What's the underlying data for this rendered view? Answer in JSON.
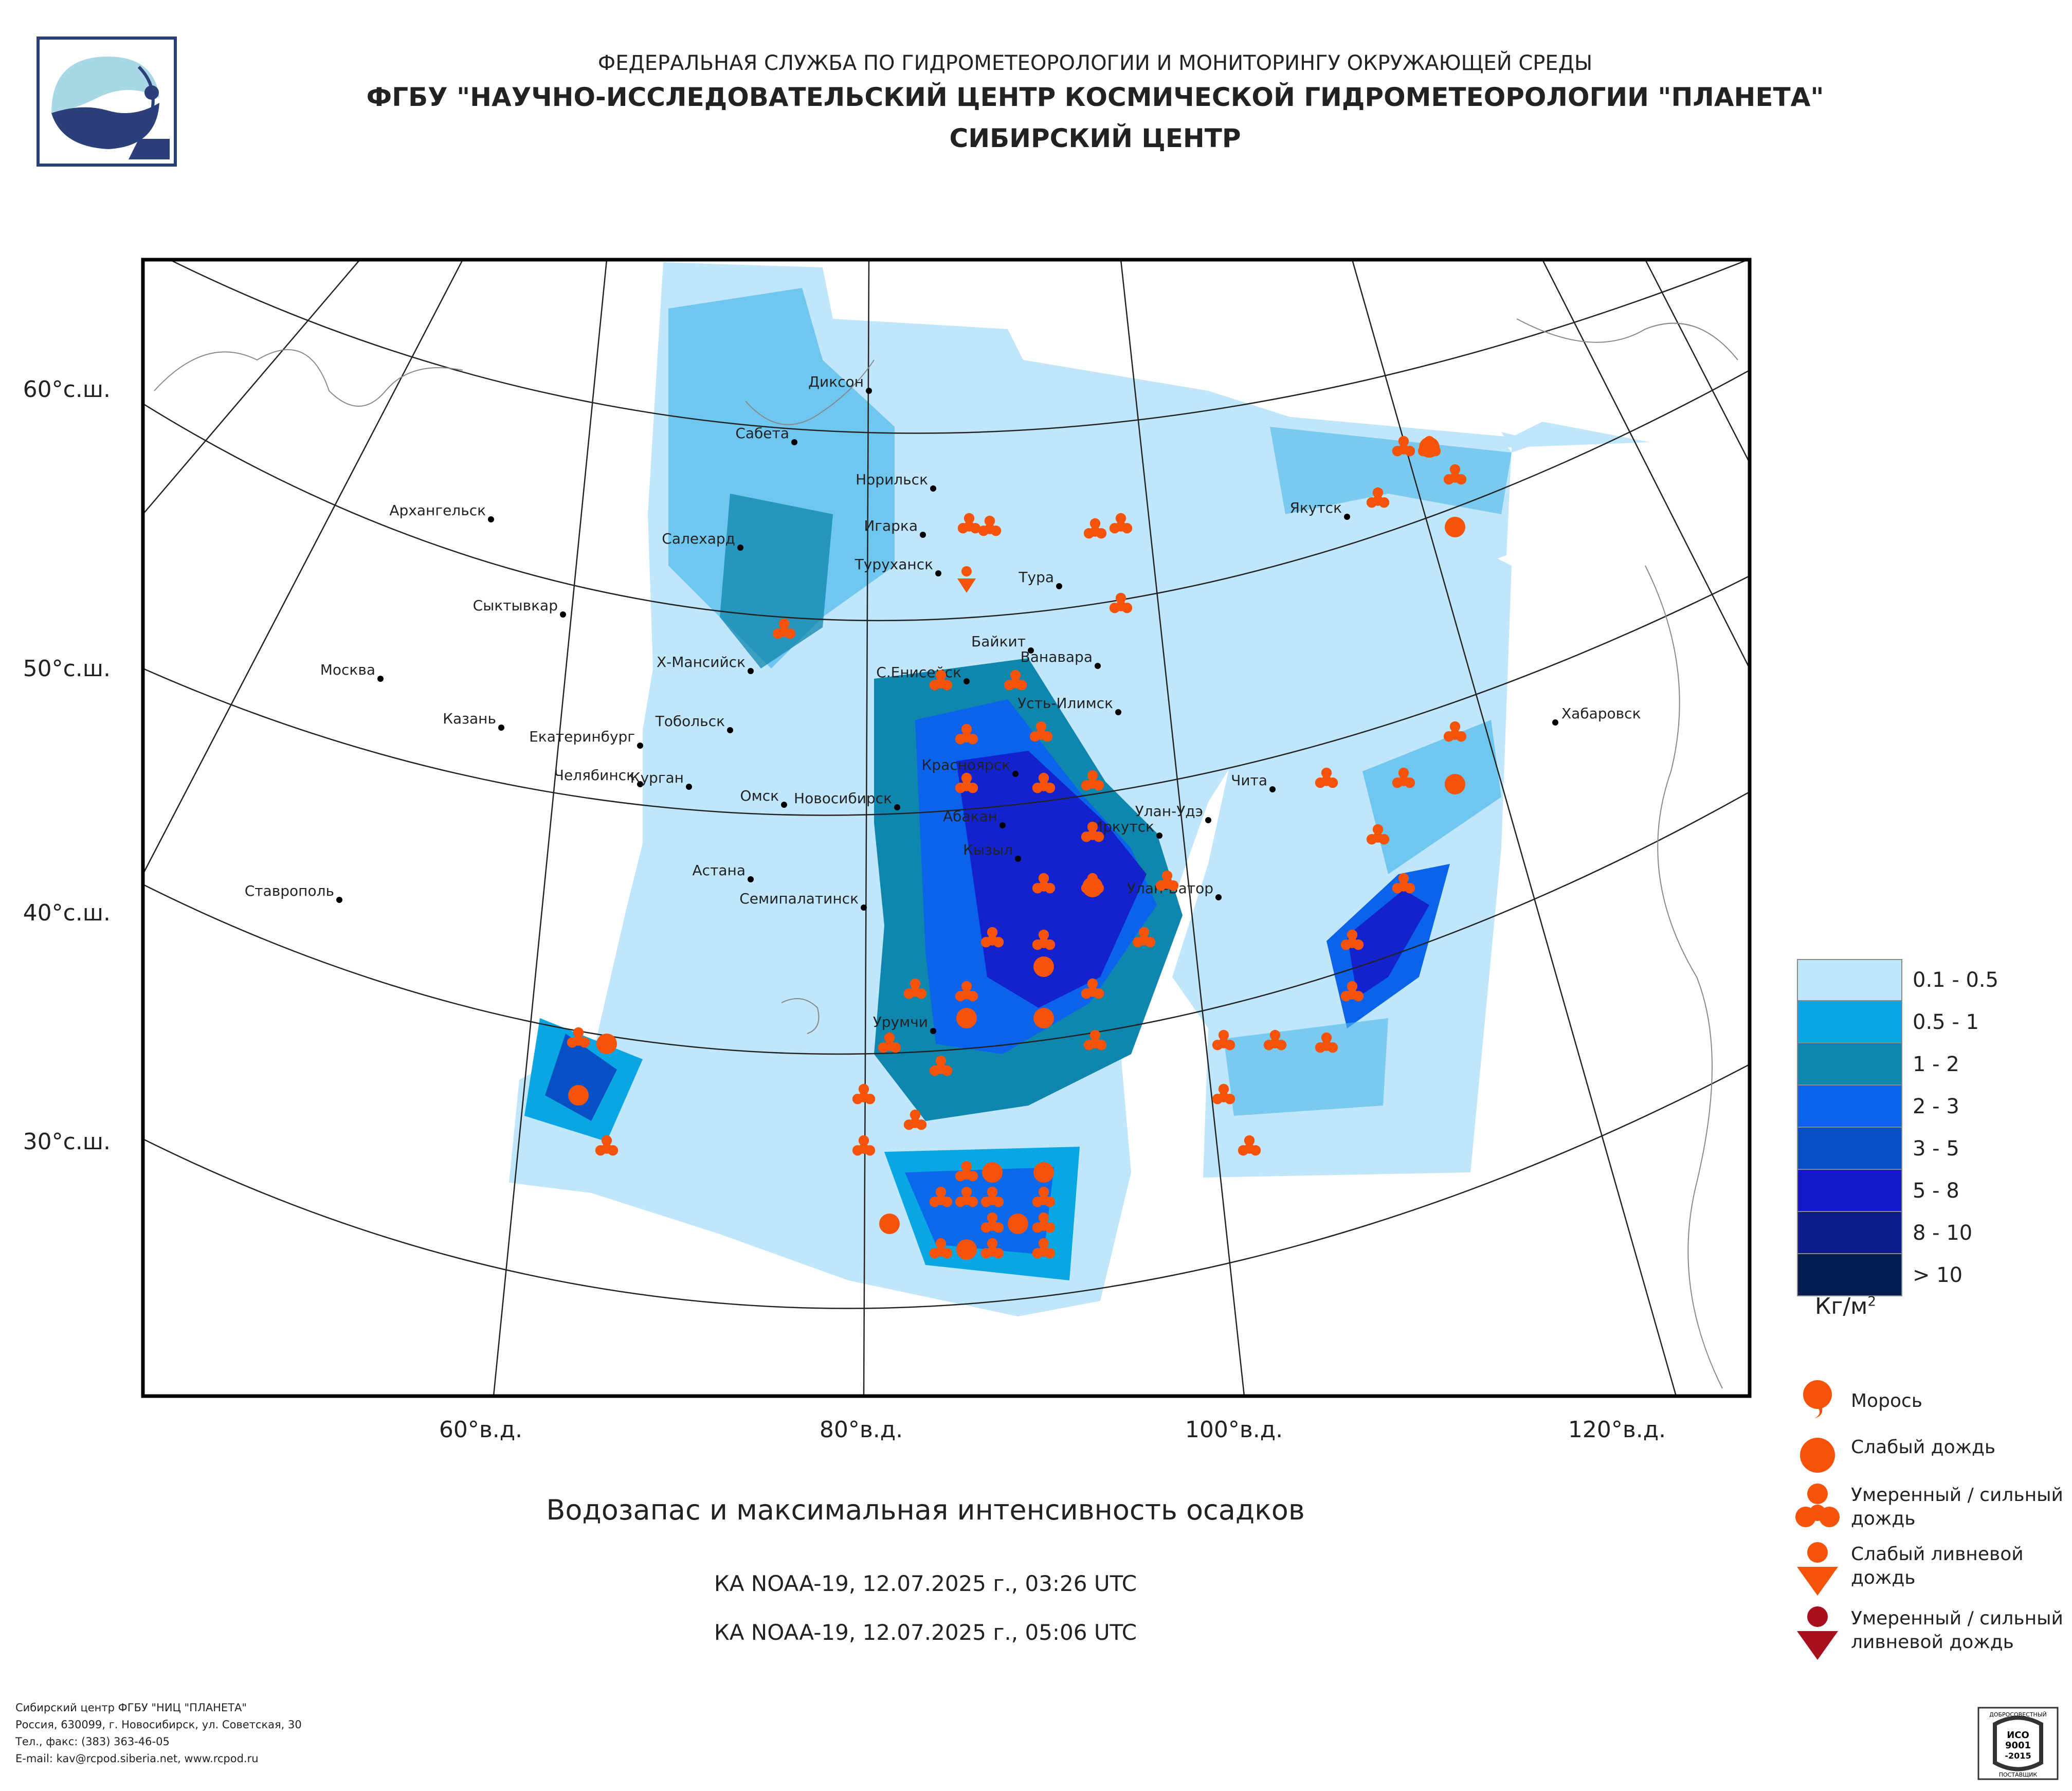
{
  "header": {
    "line1": "ФЕДЕРАЛЬНАЯ СЛУЖБА ПО ГИДРОМЕТЕОРОЛОГИИ И МОНИТОРИНГУ ОКРУЖАЮЩЕЙ СРЕДЫ",
    "line2": "ФГБУ \"НАУЧНО-ИССЛЕДОВАТЕЛЬСКИЙ ЦЕНТР КОСМИЧЕСКОЙ ГИДРОМЕТЕОРОЛОГИИ \"ПЛАНЕТА\"",
    "line3": "СИБИРСКИЙ ЦЕНТР"
  },
  "axes": {
    "lat_labels": [
      "60°с.ш.",
      "50°с.ш.",
      "40°с.ш.",
      "30°с.ш."
    ],
    "lon_labels": [
      "60°в.д.",
      "80°в.д.",
      "100°в.д.",
      "120°в.д."
    ]
  },
  "cities": [
    "Диксон",
    "Сабета",
    "Норильск",
    "Игарка",
    "Туруханск",
    "Тура",
    "Салехард",
    "Архангельск",
    "Якутск",
    "Сыктывкар",
    "Москва",
    "Х-Мансийск",
    "С.Енисейск",
    "Байкит",
    "Ванавара",
    "Усть-Илимск",
    "Казань",
    "Екатеринбург",
    "Тобольск",
    "Хабаровск",
    "Челябинск",
    "Курган",
    "Омск",
    "Новосибирск",
    "Красноярск",
    "Абакан",
    "Чита",
    "Улан-Удэ",
    "Иркутск",
    "Кызыл",
    "Астана",
    "Улан-Батор",
    "Семипалатинск",
    "Ставрополь",
    "Урумчи"
  ],
  "title": "Водозапас и максимальная интенсивность осадков",
  "passes": [
    "КА NOAA-19, 12.07.2025 г., 03:26 UTC",
    "КА NOAA-19, 12.07.2025 г., 05:06 UTC"
  ],
  "legend": {
    "items": [
      {
        "label": "0.1 - 0.5",
        "color": "#bfe6fa"
      },
      {
        "label": "0.5 - 1",
        "color": "#08a6e3"
      },
      {
        "label": "1 - 2",
        "color": "#0e86ad"
      },
      {
        "label": "2 - 3",
        "color": "#0a63ea"
      },
      {
        "label": "3 - 5",
        "color": "#0650c4"
      },
      {
        "label": "5 - 8",
        "color": "#1418c8"
      },
      {
        "label": "8 - 10",
        "color": "#0c1c8a"
      },
      {
        "label": "> 10",
        "color": "#041d52"
      }
    ],
    "unit": "Кг/м",
    "unit_sup": "2"
  },
  "symbols": [
    {
      "icon": "drizzle-icon",
      "label": "Морось",
      "color": "#f5520a"
    },
    {
      "icon": "light-rain-icon",
      "label": "Слабый дождь",
      "color": "#f5520a"
    },
    {
      "icon": "moderate-rain-icon",
      "label": "Умеренный / сильный\nдождь",
      "color": "#f5520a"
    },
    {
      "icon": "light-shower-icon",
      "label": "Слабый ливневой\nдождь",
      "color": "#f5520a"
    },
    {
      "icon": "heavy-shower-icon",
      "label": "Умеренный / сильный\nливневой дождь",
      "color": "#a8101d"
    }
  ],
  "footer": [
    "Сибирский центр ФГБУ \"НИЦ \"ПЛАНЕТА\"",
    "Россия, 630099, г. Новосибирск, ул. Советская, 30",
    "Тел., факс: (383) 363-46-05",
    "E-mail: kav@rcpod.siberia.net, www.rcpod.ru"
  ],
  "iso_badge": {
    "top": "ДОБРОСОВЕСТНЫЙ",
    "mid1": "ИСО",
    "mid2": "9001",
    "mid3": "-2015",
    "bottom": "ПОСТАВЩИК"
  }
}
